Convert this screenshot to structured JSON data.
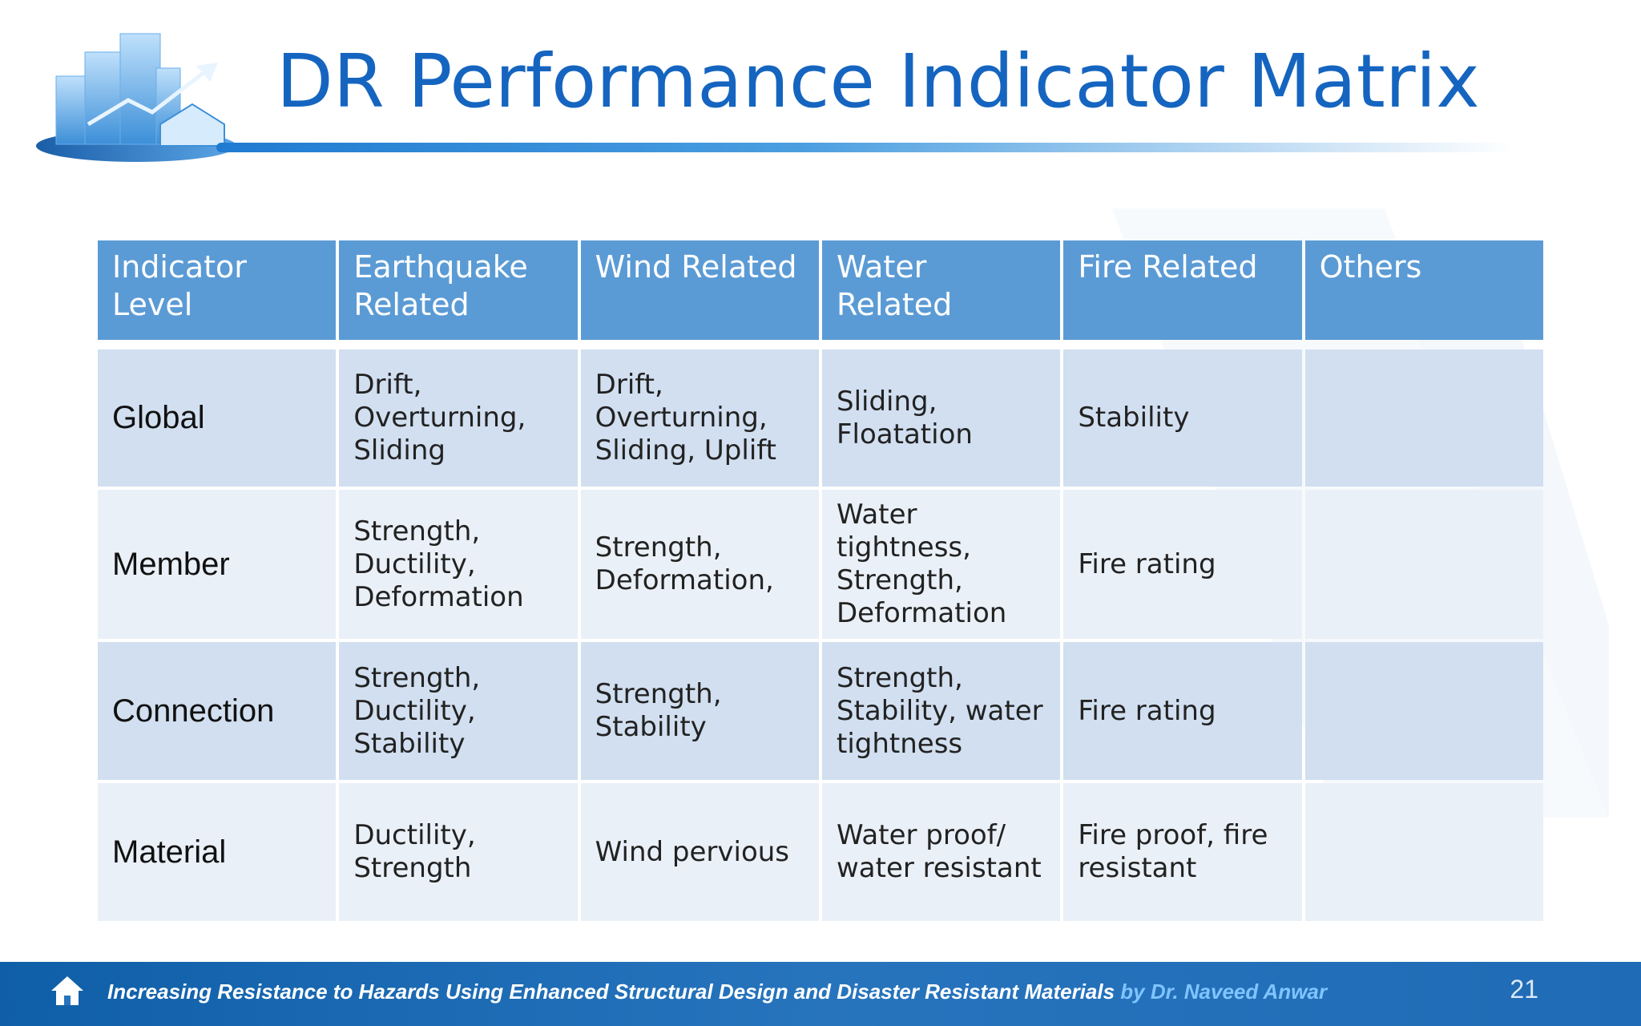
{
  "slide": {
    "title": "DR Performance Indicator Matrix",
    "page_number": "21"
  },
  "table": {
    "headers": [
      "Indicator Level",
      "Earthquake Related",
      "Wind Related",
      "Water Related",
      "Fire Related",
      "Others"
    ],
    "rows": [
      [
        "Global",
        "Drift, Overturning, Sliding",
        "Drift, Overturning, Sliding, Uplift",
        "Sliding, Floatation",
        "Stability",
        ""
      ],
      [
        "Member",
        "Strength, Ductility, Deformation",
        "Strength, Deformation,",
        "Water tightness, Strength, Deformation",
        "Fire rating",
        ""
      ],
      [
        "Connection",
        "Strength, Ductility, Stability",
        "Strength, Stability",
        "Strength, Stability, water tightness",
        "Fire rating",
        ""
      ],
      [
        "Material",
        "Ductility, Strength",
        "Wind pervious",
        "Water proof/ water resistant",
        "Fire proof, fire resistant",
        ""
      ]
    ]
  },
  "footer": {
    "text": "Increasing Resistance to Hazards Using Enhanced Structural Design and Disaster Resistant Materials",
    "author": " by Dr. Naveed Anwar"
  },
  "icons": {
    "logo": "city-buildings-logo-icon",
    "home": "home-icon"
  },
  "colors": {
    "title": "#1565c0",
    "header_bg": "#5b9bd5",
    "row_odd": "#d1dff0",
    "row_even": "#eaf0f7",
    "footer_bg": "#1f6bb5"
  }
}
